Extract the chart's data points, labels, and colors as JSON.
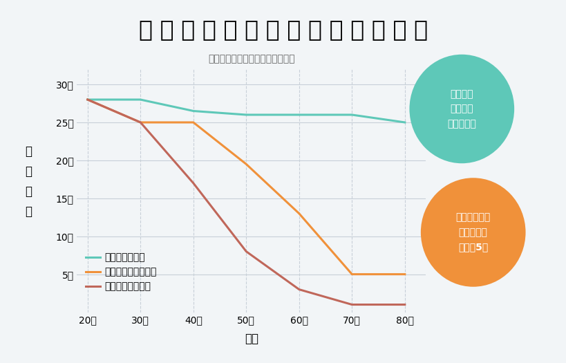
{
  "title": "歯 科 医 院 の か か り 方 と 残 存 歯 数",
  "subtitle": "長崎大学・新庄教授のデータより",
  "xlabel": "年代",
  "ylabel": "残\n存\n歯\n数",
  "x_ages": [
    20,
    30,
    40,
    50,
    60,
    70,
    80
  ],
  "x_labels": [
    "20歳",
    "30歳",
    "40歳",
    "50歳",
    "60歳",
    "70歳",
    "80歳"
  ],
  "series": [
    {
      "label": "定期検診を受診",
      "color": "#5ec8b8",
      "values": [
        28,
        28,
        26.5,
        26,
        26,
        26,
        25
      ]
    },
    {
      "label": "歯みがき指導を受診",
      "color": "#f0913a",
      "values": [
        28,
        25,
        25,
        19.5,
        13,
        5,
        5
      ]
    },
    {
      "label": "痛いときだけ受診",
      "color": "#c0675a",
      "values": [
        28,
        25,
        17,
        8,
        3,
        1,
        1
      ]
    }
  ],
  "ylim": [
    0,
    32
  ],
  "yticks": [
    5,
    10,
    15,
    20,
    25,
    30
  ],
  "ytick_labels": [
    "5本",
    "10本",
    "15本",
    "20本",
    "25本",
    "30本"
  ],
  "bg_color": "#f2f5f7",
  "grid_color": "#c8d0d8",
  "annotation1_text": "若い頃と\nほとんど\n変わらない",
  "annotation1_color": "#5ec8b8",
  "annotation2_text": "歯みがきだけ\nしていても\nわずか5本",
  "annotation2_color": "#f0913a",
  "title_fontsize": 24,
  "subtitle_fontsize": 10,
  "axis_label_fontsize": 12,
  "tick_fontsize": 10,
  "legend_fontsize": 10,
  "annotation_fontsize": 10,
  "line_width": 2.2
}
